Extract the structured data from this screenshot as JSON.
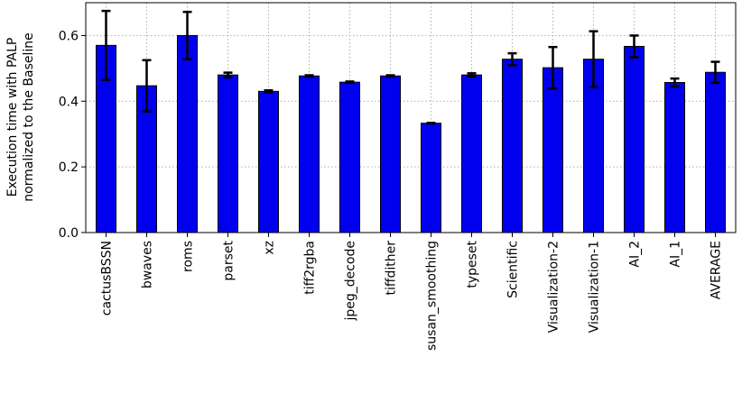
{
  "chart_data": {
    "type": "bar",
    "ylabel": [
      "Execution time with PALP",
      "normalized to the Baseline"
    ],
    "categories": [
      "cactusBSSN",
      "bwaves",
      "roms",
      "parset",
      "xz",
      "tiff2rgba",
      "jpeg_decode",
      "tiffdither",
      "susan_smoothing",
      "typeset",
      "Scientific",
      "Visualization-2",
      "Visualization-1",
      "AI_2",
      "AI_1",
      "AVERAGE"
    ],
    "values": [
      0.57,
      0.447,
      0.6,
      0.48,
      0.43,
      0.477,
      0.458,
      0.477,
      0.333,
      0.48,
      0.528,
      0.502,
      0.528,
      0.567,
      0.457,
      0.488
    ],
    "errors": [
      0.105,
      0.078,
      0.072,
      0.007,
      0.003,
      0.002,
      0.002,
      0.002,
      0.001,
      0.005,
      0.018,
      0.063,
      0.085,
      0.033,
      0.012,
      0.032
    ],
    "color": "#0000ee",
    "ylim": [
      0,
      0.7
    ],
    "yticks": [
      {
        "value": 0,
        "label": "0.0"
      },
      0.2,
      0.4,
      0.6
    ],
    "grid": true
  }
}
